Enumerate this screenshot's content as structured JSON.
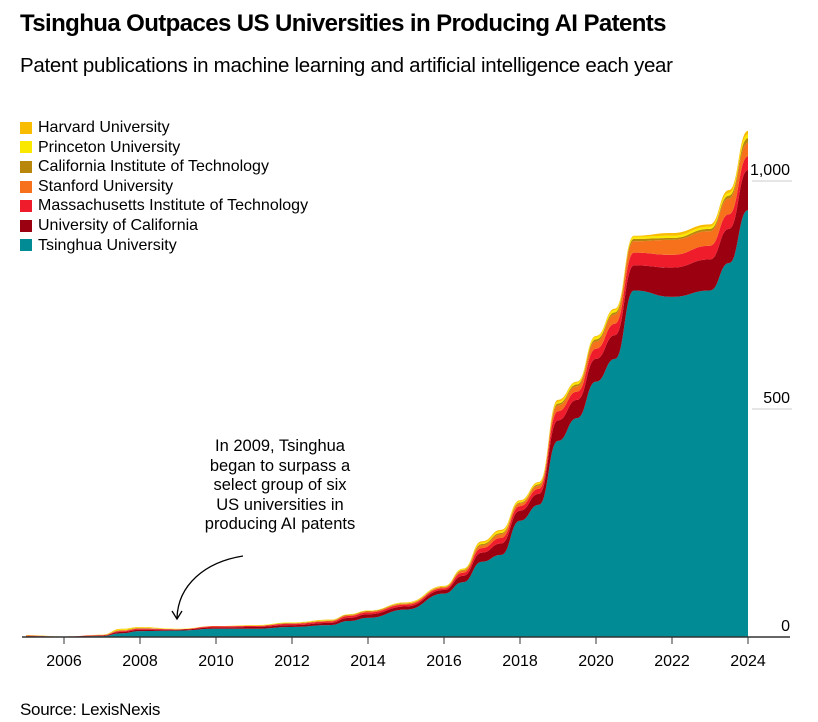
{
  "title": "Tsinghua Outpaces US Universities in Producing AI Patents",
  "subtitle": "Patent publications in machine learning and artificial intelligence each year",
  "source": "Source: LexisNexis",
  "annotation": "In 2009, Tsinghua began to surpass a select group of six US universities in producing AI patents",
  "chart_data": {
    "type": "area",
    "stacked": true,
    "title": "Tsinghua Outpaces US Universities in Producing AI Patents",
    "subtitle": "Patent publications in machine learning and artificial intelligence each year",
    "xlabel": "",
    "ylabel": "",
    "xlim": [
      2005,
      2024
    ],
    "ylim": [
      0,
      1100
    ],
    "x_ticks": [
      2006,
      2008,
      2010,
      2012,
      2014,
      2016,
      2018,
      2020,
      2022,
      2024
    ],
    "y_ticks": [
      0,
      500,
      1000
    ],
    "y_tick_labels": [
      "0",
      "500",
      "1,000"
    ],
    "y_axis_position": "right",
    "grid": false,
    "legend_position": "top-left",
    "x": [
      2005,
      2006,
      2007,
      2007.5,
      2008,
      2009,
      2010,
      2011,
      2012,
      2013,
      2013.5,
      2014,
      2015,
      2016,
      2016.5,
      2017,
      2017.5,
      2018,
      2018.5,
      2019,
      2019.5,
      2020,
      2020.5,
      2021,
      2022,
      2023,
      2023.5,
      2024
    ],
    "series": [
      {
        "name": "Tsinghua University",
        "color": "#008b95",
        "values": [
          0,
          0,
          2,
          8,
          13,
          14,
          18,
          18,
          22,
          26,
          35,
          42,
          60,
          95,
          120,
          165,
          180,
          255,
          290,
          430,
          480,
          560,
          610,
          760,
          746,
          760,
          820,
          936
        ]
      },
      {
        "name": "University of California",
        "color": "#9b0010",
        "values": [
          2,
          1,
          1,
          3,
          3,
          2,
          3,
          4,
          4,
          5,
          7,
          8,
          7,
          8,
          14,
          20,
          25,
          22,
          24,
          45,
          40,
          50,
          52,
          55,
          64,
          68,
          75,
          88
        ]
      },
      {
        "name": "Massachusetts Institute of Technology",
        "color": "#ef1c2c",
        "values": [
          1,
          0,
          1,
          2,
          2,
          1,
          2,
          2,
          3,
          3,
          4,
          4,
          4,
          4,
          7,
          10,
          12,
          10,
          11,
          20,
          18,
          22,
          25,
          28,
          28,
          30,
          32,
          30
        ]
      },
      {
        "name": "Stanford University",
        "color": "#f7711c",
        "values": [
          0,
          0,
          0,
          1,
          1,
          0,
          1,
          1,
          1,
          1,
          2,
          2,
          2,
          2,
          4,
          6,
          8,
          6,
          7,
          13,
          12,
          16,
          20,
          25,
          33,
          32,
          35,
          30
        ]
      },
      {
        "name": "California Institute of Technology",
        "color": "#b8860b",
        "values": [
          0,
          0,
          0,
          1,
          1,
          0,
          0,
          0,
          1,
          1,
          1,
          1,
          1,
          1,
          2,
          3,
          3,
          2,
          3,
          4,
          4,
          5,
          5,
          5,
          4,
          5,
          6,
          10
        ]
      },
      {
        "name": "Princeton University",
        "color": "#fbe800",
        "values": [
          0,
          0,
          0,
          2,
          1,
          1,
          0,
          1,
          1,
          1,
          1,
          1,
          1,
          1,
          2,
          3,
          4,
          3,
          3,
          4,
          4,
          5,
          5,
          5,
          5,
          5,
          6,
          8
        ]
      },
      {
        "name": "Harvard University",
        "color": "#f8bc00",
        "values": [
          1,
          0,
          1,
          1,
          1,
          0,
          0,
          0,
          0,
          1,
          0,
          0,
          1,
          1,
          1,
          3,
          3,
          2,
          2,
          4,
          2,
          2,
          3,
          2,
          6,
          5,
          6,
          8
        ]
      }
    ],
    "annotations": [
      {
        "text": "In 2009, Tsinghua began to surpass a select group of six US universities in producing AI patents",
        "x": 2009,
        "y": 0
      }
    ]
  },
  "legend": [
    {
      "label": "Harvard University",
      "color": "#f8bc00"
    },
    {
      "label": "Princeton University",
      "color": "#fbe800"
    },
    {
      "label": "California Institute of Technology",
      "color": "#b8860b"
    },
    {
      "label": "Stanford University",
      "color": "#f7711c"
    },
    {
      "label": "Massachusetts Institute of Technology",
      "color": "#ef1c2c"
    },
    {
      "label": "University of California",
      "color": "#9b0010"
    },
    {
      "label": "Tsinghua University",
      "color": "#008b95"
    }
  ]
}
